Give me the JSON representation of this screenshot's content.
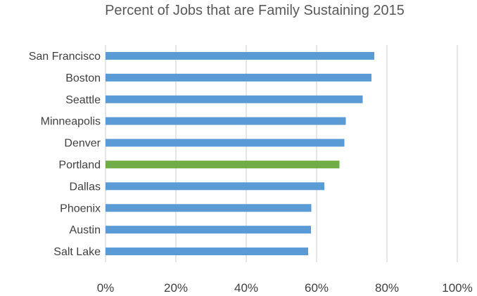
{
  "chart_data": {
    "type": "bar",
    "orientation": "horizontal",
    "title": "Percent of Jobs that are Family Sustaining 2015",
    "categories": [
      "San Francisco",
      "Boston",
      "Seattle",
      "Minneapolis",
      "Denver",
      "Portland",
      "Dallas",
      "Phoenix",
      "Austin",
      "Salt Lake"
    ],
    "values": [
      0.764,
      0.756,
      0.731,
      0.683,
      0.679,
      0.665,
      0.622,
      0.585,
      0.584,
      0.576
    ],
    "xlim": [
      0,
      1
    ],
    "xticks": [
      "0%",
      "20%",
      "40%",
      "60%",
      "80%",
      "100%"
    ],
    "xlabel": "",
    "ylabel": "",
    "grid": "vertical",
    "legend": "none",
    "highlight_category": "Portland",
    "colors": {
      "default": "#5b9bd5",
      "highlight": "#70ad47",
      "grid": "#d9d9d9",
      "text": "#404040",
      "title": "#595959"
    }
  }
}
